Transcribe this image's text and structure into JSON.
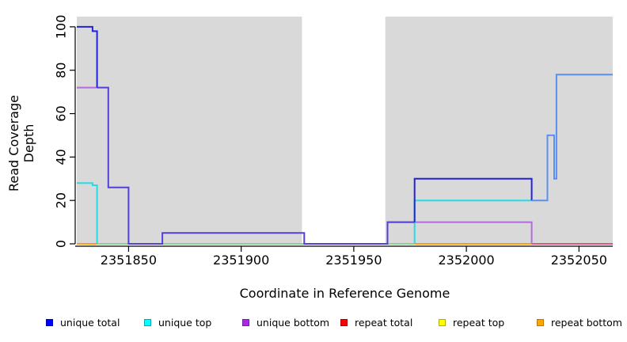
{
  "chart_data": {
    "type": "line",
    "subtype": "step-after-coverage-plot",
    "title": "",
    "xlabel": "Coordinate in Reference Genome",
    "ylabel": "Read Coverage Depth",
    "xlim": [
      2351827,
      2352065
    ],
    "ylim": [
      0,
      104.7
    ],
    "x_ticks": [
      2351850,
      2351900,
      2351950,
      2352000,
      2352050
    ],
    "y_ticks": [
      0,
      20,
      40,
      60,
      80,
      100
    ],
    "grid": false,
    "plot_bg": "#d9d9d9",
    "mask_region": {
      "from": 2351927,
      "to": 2351964,
      "color": "#ffffff"
    },
    "step": "after",
    "series": [
      {
        "name": "unique total",
        "color": "#2121e0",
        "points": [
          [
            2351827,
            100
          ],
          [
            2351834,
            98
          ],
          [
            2351836,
            72
          ],
          [
            2351841,
            26
          ],
          [
            2351850,
            0
          ],
          [
            2351865,
            5
          ],
          [
            2351928,
            0
          ],
          [
            2351965,
            10
          ],
          [
            2351977,
            30
          ],
          [
            2352029,
            20
          ],
          [
            2352036,
            50
          ],
          [
            2352039,
            30
          ],
          [
            2352040,
            78
          ],
          [
            2352065,
            78
          ]
        ]
      },
      {
        "name": "unique top",
        "color": "#22dde6",
        "points": [
          [
            2351827,
            28
          ],
          [
            2351834,
            27
          ],
          [
            2351836,
            0
          ],
          [
            2351977,
            20
          ],
          [
            2352029,
            20
          ],
          [
            2352036,
            50
          ],
          [
            2352039,
            30
          ],
          [
            2352040,
            78
          ],
          [
            2352065,
            78
          ]
        ]
      },
      {
        "name": "unique bottom",
        "color": "#b26ce0",
        "points": [
          [
            2351827,
            72
          ],
          [
            2351841,
            26
          ],
          [
            2351850,
            0
          ],
          [
            2351865,
            5
          ],
          [
            2351928,
            0
          ],
          [
            2351965,
            10
          ],
          [
            2352029,
            0
          ],
          [
            2352065,
            0
          ]
        ]
      },
      {
        "name": "repeat total",
        "color": "#e05575",
        "points": [
          [
            2351827,
            0
          ],
          [
            2352065,
            0
          ]
        ]
      },
      {
        "name": "repeat top",
        "color": "#eeee00",
        "points": [
          [
            2351827,
            0
          ],
          [
            2352065,
            0
          ]
        ]
      },
      {
        "name": "repeat bottom",
        "color": "#ff9912",
        "points": [
          [
            2351827,
            0
          ],
          [
            2352065,
            0
          ]
        ]
      }
    ],
    "render_segments": [
      {
        "name": "blend-top-lines-at-zero",
        "color": "#8fce8f",
        "points": [
          [
            2351836,
            0
          ],
          [
            2351977,
            0
          ]
        ]
      },
      {
        "name": "repeat-bottom-left",
        "color": "#ff9912",
        "points": [
          [
            2351827,
            0
          ],
          [
            2351836,
            0
          ]
        ]
      },
      {
        "name": "repeat-bottom-mid",
        "color": "#ff9912",
        "points": [
          [
            2351977,
            0
          ],
          [
            2352029,
            0
          ]
        ]
      },
      {
        "name": "repeat-total-right",
        "color": "#e05575",
        "points": [
          [
            2352029,
            0
          ],
          [
            2352065,
            0
          ]
        ]
      },
      {
        "name": "unique-bottom-left",
        "color": "#b26ce0",
        "points": [
          [
            2351827,
            72
          ],
          [
            2351836,
            72
          ]
        ]
      },
      {
        "name": "unique-bottom-right",
        "color": "#b26ce0",
        "points": [
          [
            2351965,
            0
          ],
          [
            2351965,
            10
          ],
          [
            2352029,
            10
          ],
          [
            2352029,
            0
          ]
        ]
      },
      {
        "name": "unique-top-left",
        "color": "#22dde6",
        "points": [
          [
            2351827,
            28
          ],
          [
            2351834,
            28
          ],
          [
            2351834,
            27
          ],
          [
            2351836,
            27
          ],
          [
            2351836,
            0
          ]
        ]
      },
      {
        "name": "unique-top-right",
        "color": "#22dde6",
        "points": [
          [
            2351977,
            0
          ],
          [
            2351977,
            20
          ],
          [
            2352029,
            20
          ]
        ]
      },
      {
        "name": "unique-total-over-bottom",
        "color": "#5141d8",
        "points": [
          [
            2351836,
            72
          ],
          [
            2351841,
            72
          ],
          [
            2351841,
            26
          ],
          [
            2351850,
            26
          ],
          [
            2351850,
            0
          ],
          [
            2351865,
            0
          ],
          [
            2351865,
            5
          ],
          [
            2351928,
            5
          ],
          [
            2351928,
            0
          ],
          [
            2351965,
            0
          ],
          [
            2351965,
            10
          ],
          [
            2351977,
            10
          ]
        ]
      },
      {
        "name": "unique-total-pure-left",
        "color": "#2121e0",
        "points": [
          [
            2351827,
            100
          ],
          [
            2351834,
            100
          ],
          [
            2351834,
            98
          ],
          [
            2351836,
            98
          ],
          [
            2351836,
            72
          ]
        ]
      },
      {
        "name": "unique-total-pure-right",
        "color": "#2121e0",
        "points": [
          [
            2351977,
            10
          ],
          [
            2351977,
            30
          ],
          [
            2352029,
            30
          ],
          [
            2352029,
            20
          ]
        ]
      },
      {
        "name": "unique-total-over-top",
        "color": "#5b8ff0",
        "points": [
          [
            2352029,
            20
          ],
          [
            2352036,
            20
          ],
          [
            2352036,
            50
          ],
          [
            2352039,
            50
          ],
          [
            2352039,
            30
          ],
          [
            2352040,
            30
          ],
          [
            2352040,
            78
          ],
          [
            2352065,
            78
          ]
        ]
      }
    ]
  },
  "axes_text": {
    "x_label": "Coordinate in Reference Genome",
    "y_label": "Read Coverage Depth",
    "x_tick_labels": [
      "2351850",
      "2351900",
      "2351950",
      "2352000",
      "2352050"
    ],
    "y_tick_labels": [
      "0",
      "20",
      "40",
      "60",
      "80",
      "100"
    ]
  },
  "legend": {
    "items": [
      {
        "label": "unique total",
        "fill": "#0000ff",
        "border": "#0000c0"
      },
      {
        "label": "unique top",
        "fill": "#00ffff",
        "border": "#00a8b8"
      },
      {
        "label": "unique bottom",
        "fill": "#a828e0",
        "border": "#7c1cae"
      },
      {
        "label": "repeat total",
        "fill": "#ff0000",
        "border": "#b40000"
      },
      {
        "label": "repeat top",
        "fill": "#ffff00",
        "border": "#b0b000"
      },
      {
        "label": "repeat bottom",
        "fill": "#ffa500",
        "border": "#c07800"
      }
    ]
  }
}
